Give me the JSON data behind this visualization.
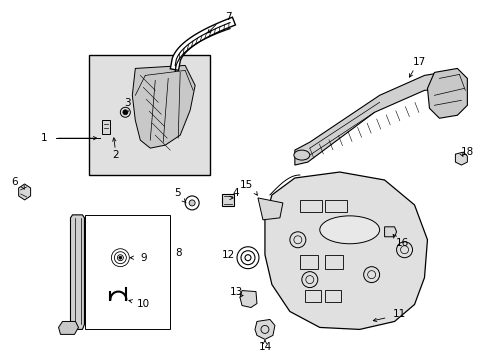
{
  "background_color": "#ffffff",
  "figure_width": 4.89,
  "figure_height": 3.6,
  "dpi": 100,
  "line_color": "#000000",
  "label_fontsize": 7.5,
  "inset_fill": "#e8e8e8",
  "part_fill": "#d8d8d8"
}
